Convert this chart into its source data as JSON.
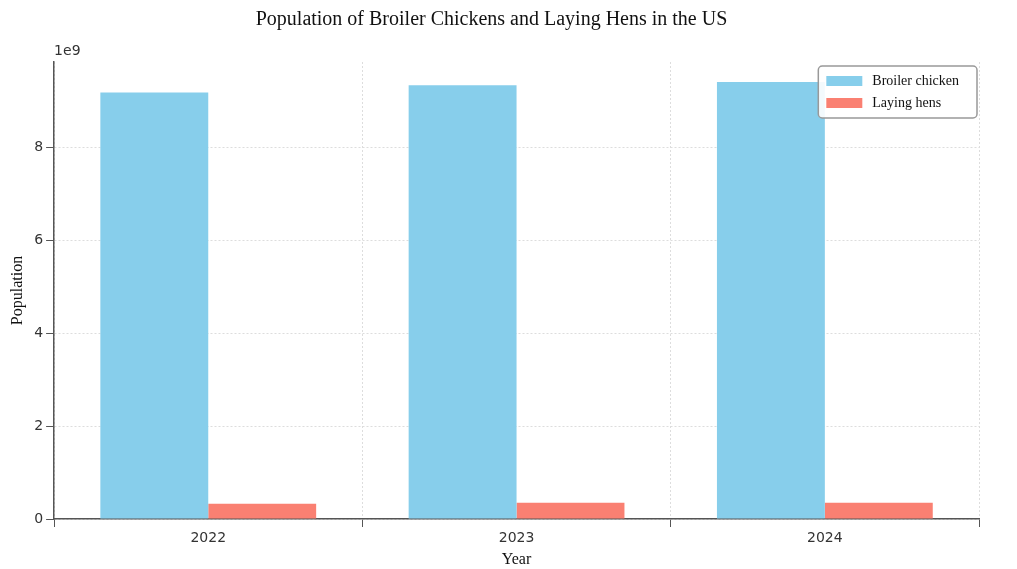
{
  "chart_data": {
    "type": "bar",
    "title": "Population of Broiler Chickens and Laying Hens in the US",
    "xlabel": "Year",
    "ylabel": "Population",
    "categories": [
      "2022",
      "2023",
      "2024"
    ],
    "series": [
      {
        "name": "Broiler chicken",
        "color": "#87ceeb",
        "values": [
          9.19,
          9.35,
          9.42
        ]
      },
      {
        "name": "Laying hens",
        "color": "#fa8072",
        "values": [
          0.33,
          0.35,
          0.35
        ]
      }
    ],
    "ylim": [
      0,
      9.85
    ],
    "yticks": [
      0,
      2,
      4,
      6,
      8
    ],
    "grid": true,
    "legend": "top right",
    "annotations": [
      "1e9"
    ]
  }
}
